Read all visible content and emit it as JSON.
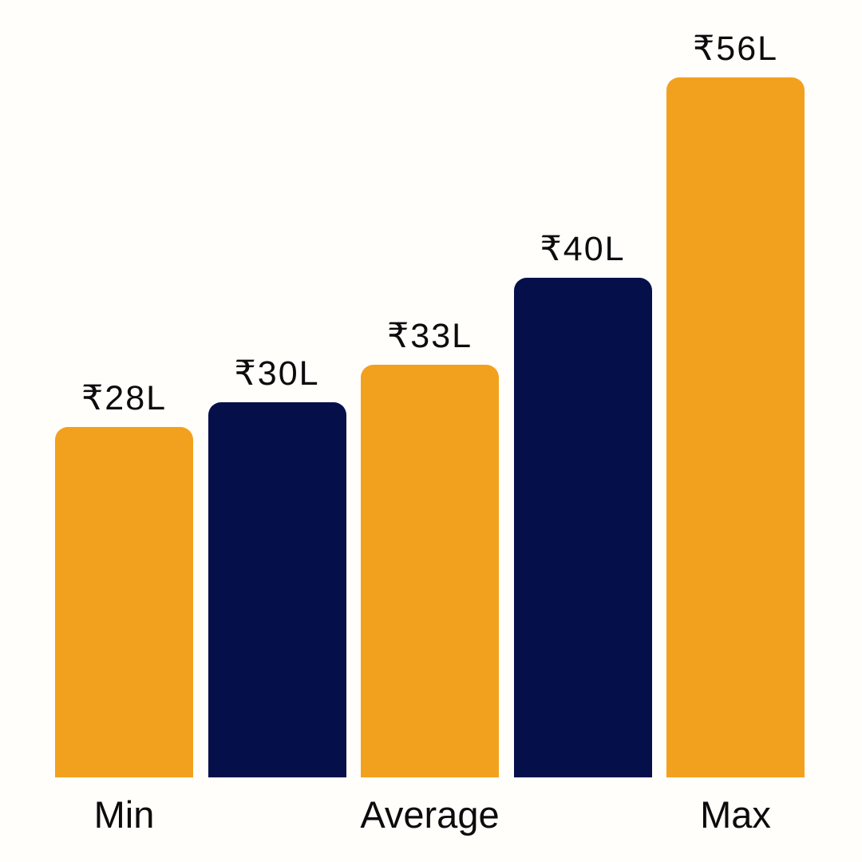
{
  "page": {
    "background_color": "#FFFEFB",
    "text_color": "#0C0C0C"
  },
  "chart_data": {
    "type": "bar",
    "title": "",
    "currency_symbol": "₹",
    "unit_suffix": "L",
    "bars": [
      {
        "value": 28,
        "value_label": "₹28L",
        "color_key": "orange"
      },
      {
        "value": 30,
        "value_label": "₹30L",
        "color_key": "navy"
      },
      {
        "value": 33,
        "value_label": "₹33L",
        "color_key": "orange"
      },
      {
        "value": 40,
        "value_label": "₹40L",
        "color_key": "navy"
      },
      {
        "value": 56,
        "value_label": "₹56L",
        "color_key": "orange"
      }
    ],
    "x_tick_labels": [
      {
        "text": "Min",
        "bar_index": 0
      },
      {
        "text": "Average",
        "bar_index": 2
      },
      {
        "text": "Max",
        "bar_index": 4
      }
    ],
    "ylim": [
      0,
      56
    ],
    "grid": false,
    "legend": false,
    "colors": {
      "orange": "#F2A11E",
      "navy": "#05104B"
    }
  }
}
